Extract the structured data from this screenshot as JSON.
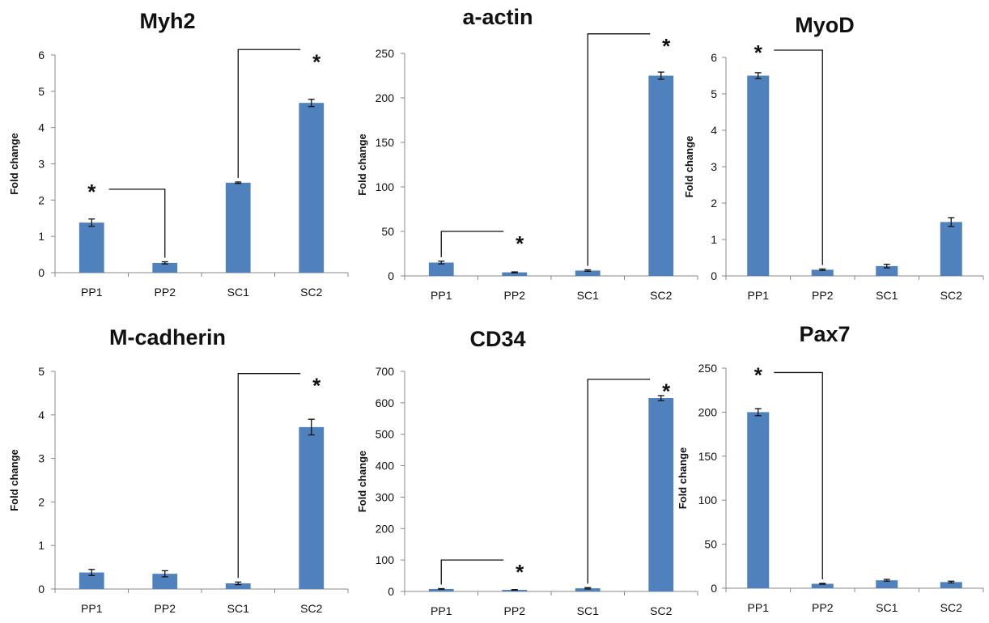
{
  "chart_data": [
    {
      "type": "bar",
      "title": "Myh2",
      "ylabel": "Fold change",
      "categories": [
        "PP1",
        "PP2",
        "SC1",
        "SC2"
      ],
      "values": [
        1.38,
        0.27,
        2.48,
        4.68
      ],
      "errors": [
        0.1,
        0.03,
        0.02,
        0.1
      ],
      "ylim": [
        0,
        6
      ],
      "yticks": [
        "0",
        "1",
        "2",
        "3",
        "4",
        "5",
        "6"
      ],
      "significance": [
        {
          "from": "PP1",
          "to": "PP2",
          "label": "*",
          "bracket_level": 2.3
        },
        {
          "from": "SC1",
          "to": "SC2",
          "label": "*",
          "bracket_level": 6.15
        }
      ]
    },
    {
      "type": "bar",
      "title": "a-actin",
      "ylabel": "Fold change",
      "categories": [
        "PP1",
        "PP2",
        "SC1",
        "SC2"
      ],
      "values": [
        15,
        4,
        6,
        225
      ],
      "errors": [
        1.5,
        0.5,
        0.8,
        4
      ],
      "ylim": [
        0,
        250
      ],
      "yticks": [
        "0",
        "50",
        "100",
        "150",
        "200",
        "250"
      ],
      "significance": [
        {
          "from": "PP1",
          "to": "PP2",
          "label": "*",
          "bracket_level": 50
        },
        {
          "from": "SC1",
          "to": "SC2",
          "label": "*",
          "bracket_level": 272
        }
      ]
    },
    {
      "type": "bar",
      "title": "MyoD",
      "ylabel": "Fold change",
      "categories": [
        "PP1",
        "PP2",
        "SC1",
        "SC2"
      ],
      "values": [
        5.5,
        0.17,
        0.27,
        1.48
      ],
      "errors": [
        0.08,
        0.02,
        0.05,
        0.12
      ],
      "ylim": [
        0,
        6
      ],
      "yticks": [
        "0",
        "1",
        "2",
        "3",
        "4",
        "5",
        "6"
      ],
      "significance": [
        {
          "from": "PP1",
          "to": "PP2",
          "label": "*",
          "bracket_level": 6.2
        }
      ]
    },
    {
      "type": "bar",
      "title": "M-cadherin",
      "ylabel": "Fold change",
      "categories": [
        "PP1",
        "PP2",
        "SC1",
        "SC2"
      ],
      "values": [
        0.38,
        0.35,
        0.13,
        3.72
      ],
      "errors": [
        0.07,
        0.07,
        0.03,
        0.18
      ],
      "ylim": [
        0,
        5
      ],
      "yticks": [
        "0",
        "1",
        "2",
        "3",
        "4",
        "5"
      ],
      "significance": [
        {
          "from": "SC1",
          "to": "SC2",
          "label": "*",
          "bracket_level": 4.95
        }
      ]
    },
    {
      "type": "bar",
      "title": "CD34",
      "ylabel": "Fold change",
      "categories": [
        "PP1",
        "PP2",
        "SC1",
        "SC2"
      ],
      "values": [
        8,
        5,
        10,
        615
      ],
      "errors": [
        1,
        1,
        2,
        8
      ],
      "ylim": [
        0,
        700
      ],
      "yticks": [
        "0",
        "100",
        "200",
        "300",
        "400",
        "500",
        "600",
        "700"
      ],
      "significance": [
        {
          "from": "PP1",
          "to": "PP2",
          "label": "*",
          "bracket_level": 100
        },
        {
          "from": "SC1",
          "to": "SC2",
          "label": "*",
          "bracket_level": 675
        }
      ]
    },
    {
      "type": "bar",
      "title": "Pax7",
      "ylabel": "Fold change",
      "categories": [
        "PP1",
        "PP2",
        "SC1",
        "SC2"
      ],
      "values": [
        200,
        5,
        9,
        7
      ],
      "errors": [
        4,
        0.5,
        1,
        1
      ],
      "ylim": [
        0,
        250
      ],
      "yticks": [
        "0",
        "50",
        "100",
        "150",
        "200",
        "250"
      ],
      "significance": [
        {
          "from": "PP1",
          "to": "PP2",
          "label": "*",
          "bracket_level": 245
        }
      ]
    }
  ],
  "colors": {
    "bar": "#4f81bd",
    "axis": "#888888",
    "text": "#111111"
  }
}
